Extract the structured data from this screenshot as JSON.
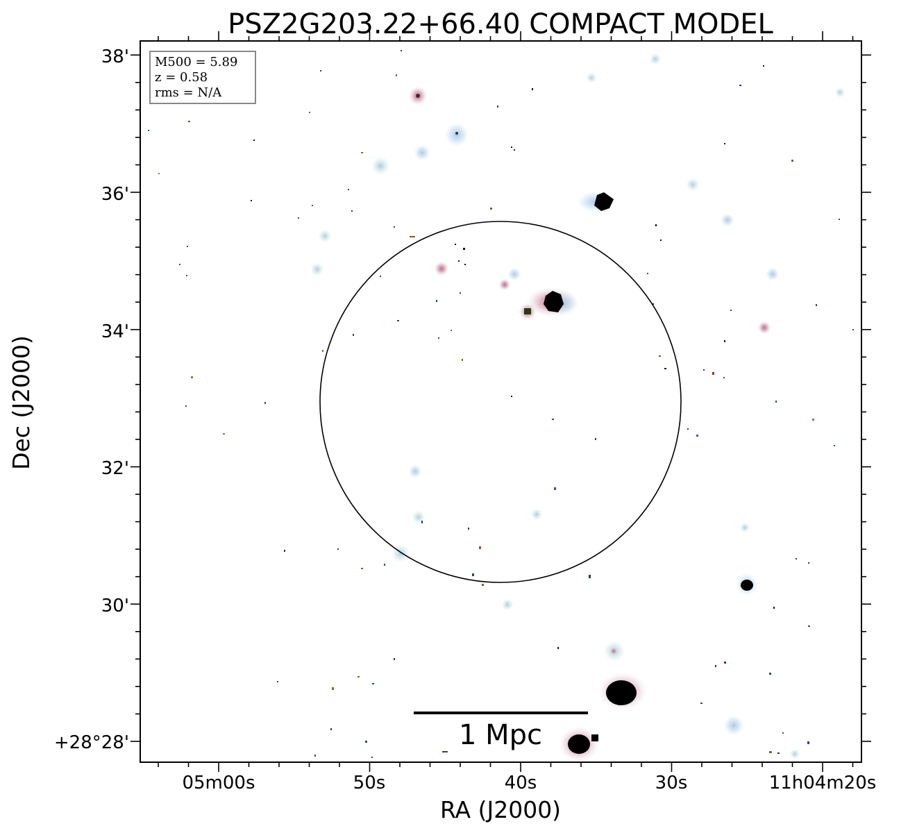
{
  "figure": {
    "title": "PSZ2G203.22+66.40 COMPACT MODEL",
    "xlabel": "RA (J2000)",
    "ylabel": "Dec (J2000)",
    "x_ticks": [
      "05m00s",
      "50s",
      "40s",
      "30s",
      "11h04m20s"
    ],
    "y_ticks": [
      "+28°28'",
      "30'",
      "32'",
      "34'",
      "36'",
      "38'"
    ]
  },
  "info_box": {
    "lines": [
      "M500 = 5.89",
      "z = 0.58",
      "rms = N/A"
    ]
  },
  "scale_bar": {
    "label": "1 Mpc"
  },
  "colors": {
    "halo_cool": "#bcd6ea",
    "halo_warm": "#d89aa6",
    "core": "#000000",
    "frame": "#000000"
  }
}
